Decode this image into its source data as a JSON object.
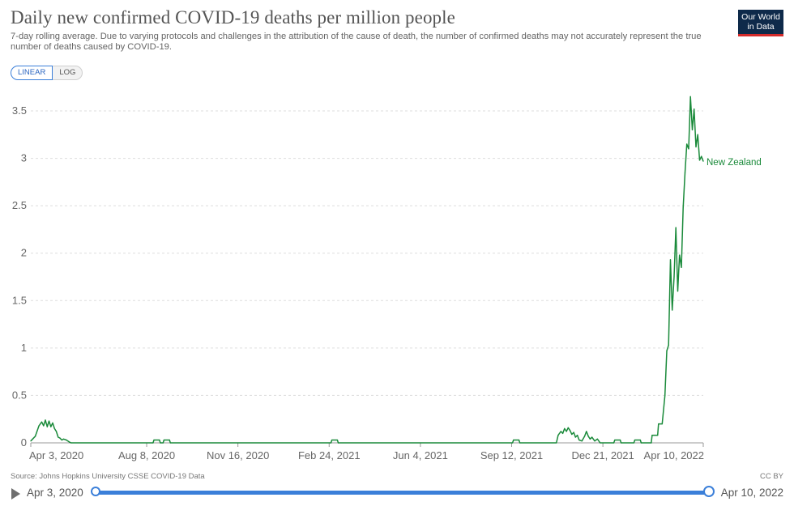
{
  "header": {
    "title": "Daily new confirmed COVID-19 deaths per million people",
    "subtitle": "7-day rolling average. Due to varying protocols and challenges in the attribution of the cause of death, the number of confirmed deaths may not accurately represent the true number of deaths caused by COVID-19.",
    "logo_line1": "Our World",
    "logo_line2": "in Data"
  },
  "controls": {
    "linear_label": "LINEAR",
    "log_label": "LOG",
    "active": "linear"
  },
  "footer": {
    "source": "Source: Johns Hopkins University CSSE COVID-19 Data",
    "license": "CC BY"
  },
  "timeline": {
    "start_label": "Apr 3, 2020",
    "end_label": "Apr 10, 2022"
  },
  "colors": {
    "series": "#1a8a3a",
    "grid": "#dddddd",
    "accent": "#3b7fd9",
    "logo_bg": "#0e2a4a",
    "logo_bar": "#d42b2b"
  },
  "chart_data": {
    "type": "line",
    "x_start": "2020-04-03",
    "x_end": "2022-04-10",
    "ylim": [
      0,
      3.5
    ],
    "yticks": [
      "0",
      "0.5",
      "1",
      "1.5",
      "2",
      "2.5",
      "3",
      "3.5"
    ],
    "xticks": [
      {
        "date": "2020-04-03",
        "label": "Apr 3, 2020"
      },
      {
        "date": "2020-08-08",
        "label": "Aug 8, 2020"
      },
      {
        "date": "2020-11-16",
        "label": "Nov 16, 2020"
      },
      {
        "date": "2021-02-24",
        "label": "Feb 24, 2021"
      },
      {
        "date": "2021-06-04",
        "label": "Jun 4, 2021"
      },
      {
        "date": "2021-09-12",
        "label": "Sep 12, 2021"
      },
      {
        "date": "2021-12-21",
        "label": "Dec 21, 2021"
      },
      {
        "date": "2022-04-10",
        "label": "Apr 10, 2022"
      }
    ],
    "grid": true,
    "series": [
      {
        "name": "New Zealand",
        "color": "#1a8a3a",
        "points": [
          [
            "2020-04-03",
            0.02
          ],
          [
            "2020-04-08",
            0.07
          ],
          [
            "2020-04-12",
            0.18
          ],
          [
            "2020-04-15",
            0.22
          ],
          [
            "2020-04-17",
            0.18
          ],
          [
            "2020-04-19",
            0.24
          ],
          [
            "2020-04-21",
            0.17
          ],
          [
            "2020-04-23",
            0.23
          ],
          [
            "2020-04-25",
            0.17
          ],
          [
            "2020-04-27",
            0.21
          ],
          [
            "2020-04-29",
            0.15
          ],
          [
            "2020-05-01",
            0.12
          ],
          [
            "2020-05-03",
            0.06
          ],
          [
            "2020-05-05",
            0.05
          ],
          [
            "2020-05-07",
            0.03
          ],
          [
            "2020-05-09",
            0.04
          ],
          [
            "2020-05-12",
            0.03
          ],
          [
            "2020-05-15",
            0.01
          ],
          [
            "2020-05-17",
            0.0
          ],
          [
            "2020-08-15",
            0.0
          ],
          [
            "2020-08-16",
            0.03
          ],
          [
            "2020-08-22",
            0.03
          ],
          [
            "2020-08-23",
            0.0
          ],
          [
            "2020-08-26",
            0.0
          ],
          [
            "2020-08-27",
            0.03
          ],
          [
            "2020-09-02",
            0.03
          ],
          [
            "2020-09-03",
            0.0
          ],
          [
            "2021-02-26",
            0.0
          ],
          [
            "2021-02-27",
            0.03
          ],
          [
            "2021-03-05",
            0.03
          ],
          [
            "2021-03-06",
            0.0
          ],
          [
            "2021-09-13",
            0.0
          ],
          [
            "2021-09-14",
            0.03
          ],
          [
            "2021-09-20",
            0.03
          ],
          [
            "2021-09-21",
            0.0
          ],
          [
            "2021-10-31",
            0.0
          ],
          [
            "2021-11-02",
            0.08
          ],
          [
            "2021-11-05",
            0.12
          ],
          [
            "2021-11-07",
            0.1
          ],
          [
            "2021-11-09",
            0.15
          ],
          [
            "2021-11-11",
            0.12
          ],
          [
            "2021-11-13",
            0.16
          ],
          [
            "2021-11-15",
            0.13
          ],
          [
            "2021-11-17",
            0.09
          ],
          [
            "2021-11-19",
            0.11
          ],
          [
            "2021-11-21",
            0.06
          ],
          [
            "2021-11-23",
            0.08
          ],
          [
            "2021-11-25",
            0.03
          ],
          [
            "2021-11-28",
            0.02
          ],
          [
            "2021-12-01",
            0.07
          ],
          [
            "2021-12-03",
            0.12
          ],
          [
            "2021-12-05",
            0.07
          ],
          [
            "2021-12-07",
            0.04
          ],
          [
            "2021-12-09",
            0.06
          ],
          [
            "2021-12-12",
            0.02
          ],
          [
            "2021-12-15",
            0.04
          ],
          [
            "2021-12-18",
            0.0
          ],
          [
            "2022-01-02",
            0.0
          ],
          [
            "2022-01-03",
            0.03
          ],
          [
            "2022-01-09",
            0.03
          ],
          [
            "2022-01-10",
            0.0
          ],
          [
            "2022-01-24",
            0.0
          ],
          [
            "2022-01-25",
            0.03
          ],
          [
            "2022-01-31",
            0.03
          ],
          [
            "2022-02-01",
            0.0
          ],
          [
            "2022-02-12",
            0.0
          ],
          [
            "2022-02-13",
            0.08
          ],
          [
            "2022-02-19",
            0.08
          ],
          [
            "2022-02-20",
            0.2
          ],
          [
            "2022-02-24",
            0.2
          ],
          [
            "2022-02-27",
            0.5
          ],
          [
            "2022-03-01",
            0.97
          ],
          [
            "2022-03-03",
            1.03
          ],
          [
            "2022-03-05",
            1.93
          ],
          [
            "2022-03-07",
            1.4
          ],
          [
            "2022-03-09",
            1.75
          ],
          [
            "2022-03-11",
            2.27
          ],
          [
            "2022-03-13",
            1.6
          ],
          [
            "2022-03-15",
            1.98
          ],
          [
            "2022-03-17",
            1.85
          ],
          [
            "2022-03-19",
            2.48
          ],
          [
            "2022-03-21",
            2.85
          ],
          [
            "2022-03-23",
            3.15
          ],
          [
            "2022-03-25",
            3.1
          ],
          [
            "2022-03-27",
            3.65
          ],
          [
            "2022-03-29",
            3.3
          ],
          [
            "2022-03-31",
            3.52
          ],
          [
            "2022-04-02",
            3.12
          ],
          [
            "2022-04-04",
            3.25
          ],
          [
            "2022-04-06",
            2.98
          ],
          [
            "2022-04-08",
            3.02
          ],
          [
            "2022-04-10",
            2.97
          ]
        ]
      }
    ]
  }
}
